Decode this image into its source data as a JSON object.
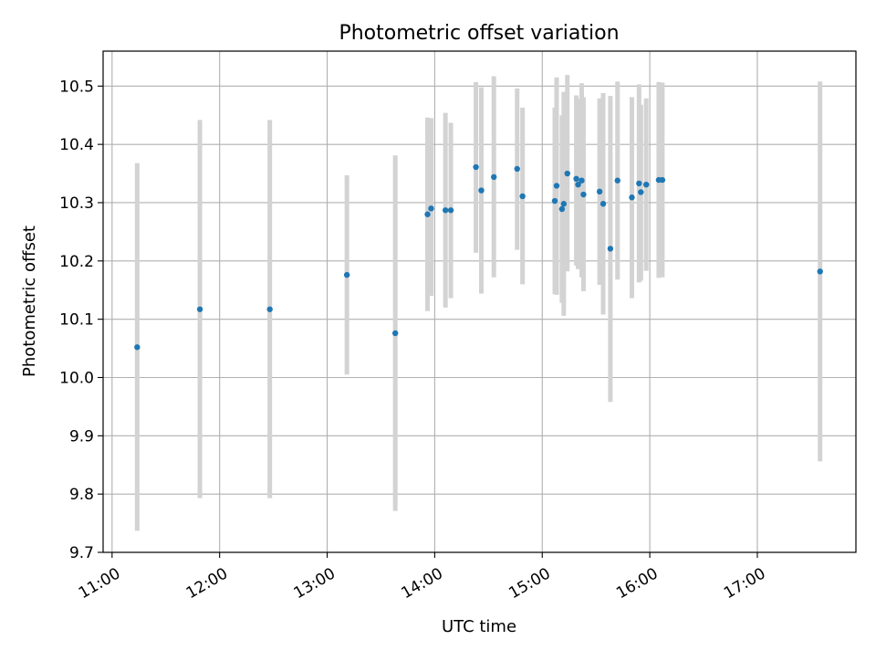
{
  "chart_data": {
    "type": "scatter",
    "title": "Photometric offset variation",
    "xlabel": "UTC time",
    "ylabel": "Photometric offset",
    "x_tick_labels": [
      "11:00",
      "12:00",
      "13:00",
      "14:00",
      "15:00",
      "16:00",
      "17:00"
    ],
    "x_tick_values": [
      "11:00",
      "12:00",
      "13:00",
      "14:00",
      "15:00",
      "16:00",
      "17:00"
    ],
    "y_ticks": [
      9.7,
      9.8,
      9.9,
      10.0,
      10.1,
      10.2,
      10.3,
      10.4,
      10.5
    ],
    "y_tick_labels": [
      "9.7",
      "9.8",
      "9.9",
      "10.0",
      "10.1",
      "10.2",
      "10.3",
      "10.4",
      "10.5"
    ],
    "xlim": [
      "10:55",
      "17:55"
    ],
    "ylim": [
      9.7,
      10.56
    ],
    "grid": true,
    "marker_color": "#1f77b4",
    "errorbar_color": "#d3d3d3",
    "points": [
      {
        "x": "11:14",
        "y": 10.052,
        "err_low": 9.737,
        "err_high": 10.368
      },
      {
        "x": "11:49",
        "y": 10.117,
        "err_low": 9.793,
        "err_high": 10.442
      },
      {
        "x": "12:28",
        "y": 10.117,
        "err_low": 9.793,
        "err_high": 10.442
      },
      {
        "x": "13:11",
        "y": 10.176,
        "err_low": 10.005,
        "err_high": 10.347
      },
      {
        "x": "13:38",
        "y": 10.076,
        "err_low": 9.771,
        "err_high": 10.381
      },
      {
        "x": "13:56",
        "y": 10.28,
        "err_low": 10.114,
        "err_high": 10.446
      },
      {
        "x": "13:58",
        "y": 10.29,
        "err_low": 10.14,
        "err_high": 10.445
      },
      {
        "x": "14:06",
        "y": 10.287,
        "err_low": 10.12,
        "err_high": 10.454
      },
      {
        "x": "14:09",
        "y": 10.287,
        "err_low": 10.136,
        "err_high": 10.437
      },
      {
        "x": "14:23",
        "y": 10.361,
        "err_low": 10.214,
        "err_high": 10.507
      },
      {
        "x": "14:26",
        "y": 10.321,
        "err_low": 10.144,
        "err_high": 10.498
      },
      {
        "x": "14:33",
        "y": 10.344,
        "err_low": 10.172,
        "err_high": 10.517
      },
      {
        "x": "14:46",
        "y": 10.358,
        "err_low": 10.219,
        "err_high": 10.496
      },
      {
        "x": "14:49",
        "y": 10.311,
        "err_low": 10.16,
        "err_high": 10.463
      },
      {
        "x": "15:07",
        "y": 10.303,
        "err_low": 10.143,
        "err_high": 10.463
      },
      {
        "x": "15:08",
        "y": 10.329,
        "err_low": 10.142,
        "err_high": 10.515
      },
      {
        "x": "15:11",
        "y": 10.289,
        "err_low": 10.128,
        "err_high": 10.45
      },
      {
        "x": "15:12",
        "y": 10.298,
        "err_low": 10.106,
        "err_high": 10.49
      },
      {
        "x": "15:14",
        "y": 10.35,
        "err_low": 10.182,
        "err_high": 10.519
      },
      {
        "x": "15:19",
        "y": 10.341,
        "err_low": 10.192,
        "err_high": 10.484
      },
      {
        "x": "15:20",
        "y": 10.331,
        "err_low": 10.186,
        "err_high": 10.478
      },
      {
        "x": "15:22",
        "y": 10.338,
        "err_low": 10.172,
        "err_high": 10.505
      },
      {
        "x": "15:23",
        "y": 10.314,
        "err_low": 10.148,
        "err_high": 10.481
      },
      {
        "x": "15:32",
        "y": 10.319,
        "err_low": 10.159,
        "err_high": 10.479
      },
      {
        "x": "15:34",
        "y": 10.298,
        "err_low": 10.108,
        "err_high": 10.488
      },
      {
        "x": "15:38",
        "y": 10.221,
        "err_low": 9.958,
        "err_high": 10.483
      },
      {
        "x": "15:42",
        "y": 10.338,
        "err_low": 10.168,
        "err_high": 10.508
      },
      {
        "x": "15:50",
        "y": 10.309,
        "err_low": 10.136,
        "err_high": 10.481
      },
      {
        "x": "15:54",
        "y": 10.333,
        "err_low": 10.163,
        "err_high": 10.503
      },
      {
        "x": "15:55",
        "y": 10.318,
        "err_low": 10.166,
        "err_high": 10.468
      },
      {
        "x": "15:58",
        "y": 10.331,
        "err_low": 10.183,
        "err_high": 10.479
      },
      {
        "x": "16:05",
        "y": 10.339,
        "err_low": 10.171,
        "err_high": 10.507
      },
      {
        "x": "16:07",
        "y": 10.339,
        "err_low": 10.172,
        "err_high": 10.506
      },
      {
        "x": "17:35",
        "y": 10.182,
        "err_low": 9.856,
        "err_high": 10.508
      }
    ]
  }
}
